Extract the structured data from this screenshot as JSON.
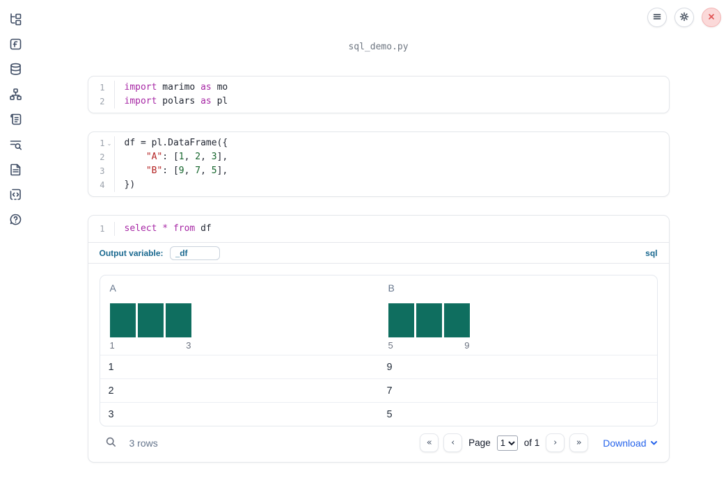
{
  "app": {
    "title": "sql_demo.py"
  },
  "topbar": {
    "menu_button": "notebook-menu",
    "settings_button": "settings",
    "shutdown_button": "shutdown"
  },
  "sidebar": {
    "items": [
      {
        "id": "file-explorer",
        "icon": "file-tree-icon"
      },
      {
        "id": "variables",
        "icon": "function-f-icon"
      },
      {
        "id": "data-sources",
        "icon": "database-icon"
      },
      {
        "id": "dependencies",
        "icon": "org-chart-icon"
      },
      {
        "id": "logs",
        "icon": "scroll-icon"
      },
      {
        "id": "tracebacks",
        "icon": "list-search-icon"
      },
      {
        "id": "documentation",
        "icon": "document-icon"
      },
      {
        "id": "snippets",
        "icon": "code-brackets-icon"
      },
      {
        "id": "help",
        "icon": "help-chat-icon"
      }
    ]
  },
  "cells": [
    {
      "lines": [
        {
          "num": "1",
          "tokens": [
            {
              "t": "import",
              "c": "kw"
            },
            {
              "t": " marimo ",
              "c": "pl"
            },
            {
              "t": "as",
              "c": "kw"
            },
            {
              "t": " mo",
              "c": "pl"
            }
          ]
        },
        {
          "num": "2",
          "tokens": [
            {
              "t": "import",
              "c": "kw"
            },
            {
              "t": " polars ",
              "c": "pl"
            },
            {
              "t": "as",
              "c": "kw"
            },
            {
              "t": " pl",
              "c": "pl"
            }
          ]
        }
      ]
    },
    {
      "lines": [
        {
          "num": "1",
          "fold": "⌄",
          "tokens": [
            {
              "t": "df = pl.DataFrame({",
              "c": "pl"
            }
          ]
        },
        {
          "num": "2",
          "tokens": [
            {
              "t": "    ",
              "c": "pl"
            },
            {
              "t": "\"A\"",
              "c": "str"
            },
            {
              "t": ": [",
              "c": "pl"
            },
            {
              "t": "1",
              "c": "num"
            },
            {
              "t": ", ",
              "c": "pl"
            },
            {
              "t": "2",
              "c": "num"
            },
            {
              "t": ", ",
              "c": "pl"
            },
            {
              "t": "3",
              "c": "num"
            },
            {
              "t": "],",
              "c": "pl"
            }
          ]
        },
        {
          "num": "3",
          "tokens": [
            {
              "t": "    ",
              "c": "pl"
            },
            {
              "t": "\"B\"",
              "c": "str"
            },
            {
              "t": ": [",
              "c": "pl"
            },
            {
              "t": "9",
              "c": "num"
            },
            {
              "t": ", ",
              "c": "pl"
            },
            {
              "t": "7",
              "c": "num"
            },
            {
              "t": ", ",
              "c": "pl"
            },
            {
              "t": "5",
              "c": "num"
            },
            {
              "t": "],",
              "c": "pl"
            }
          ]
        },
        {
          "num": "4",
          "tokens": [
            {
              "t": "})",
              "c": "pl"
            }
          ]
        }
      ]
    },
    {
      "lines": [
        {
          "num": "1",
          "tokens": [
            {
              "t": "select",
              "c": "kw"
            },
            {
              "t": " ",
              "c": "pl"
            },
            {
              "t": "*",
              "c": "kw"
            },
            {
              "t": " ",
              "c": "pl"
            },
            {
              "t": "from",
              "c": "kw"
            },
            {
              "t": " df",
              "c": "pl"
            }
          ]
        }
      ],
      "footer": {
        "label": "Output variable:",
        "value": "_df",
        "language": "sql"
      }
    }
  ],
  "table": {
    "columns": [
      {
        "name": "A",
        "axis_min": "1",
        "axis_max": "3",
        "hist_bars": [
          1,
          1,
          1
        ]
      },
      {
        "name": "B",
        "axis_min": "5",
        "axis_max": "9",
        "hist_bars": [
          1,
          1,
          1
        ]
      }
    ],
    "rows": [
      [
        "1",
        "9"
      ],
      [
        "2",
        "7"
      ],
      [
        "3",
        "5"
      ]
    ],
    "footer": {
      "rows_count": "3 rows",
      "pagination": {
        "first": "«",
        "prev": "‹",
        "page_label": "Page",
        "page_value": "1",
        "of_label": "of 1",
        "next": "›",
        "last": "»"
      },
      "download_label": "Download"
    }
  },
  "colors": {
    "hist_bar": "#0f6e5f",
    "accent_teal": "#19688f",
    "keyword_purple": "#a626a4",
    "string_red": "#b32222",
    "number_green": "#116329",
    "download_blue": "#2563eb"
  }
}
